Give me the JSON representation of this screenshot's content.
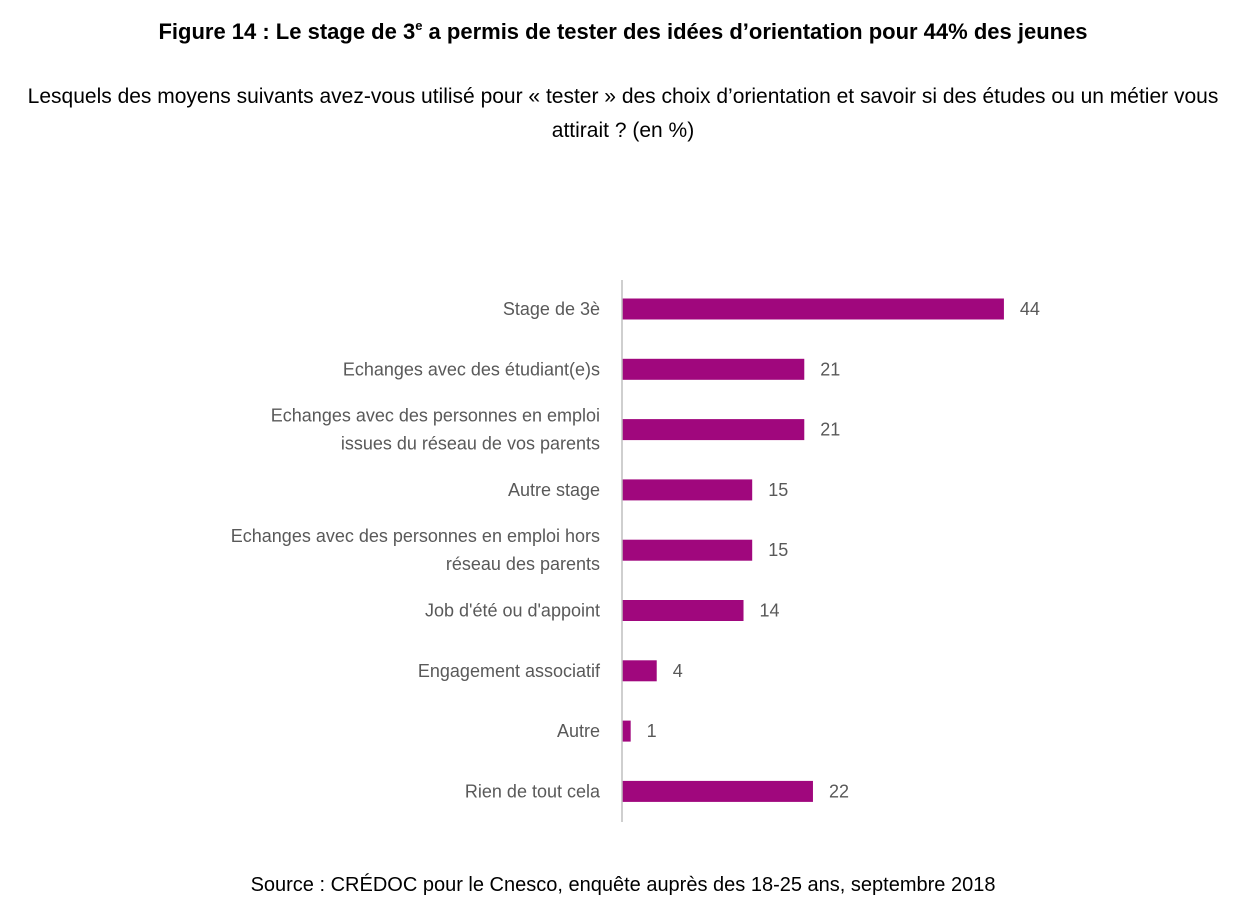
{
  "figure": {
    "title_main": "Figure 14 : Le stage de 3",
    "title_sup": "e",
    "title_rest": " a permis de tester des idées d’orientation pour 44% des jeunes",
    "subtitle": "Lesquels des moyens suivants avez-vous utilisé pour « tester » des choix d’orientation et savoir si des études ou un métier vous attirait ? (en %)",
    "source": "Source : CRÉDOC pour le Cnesco, enquête auprès des 18-25 ans, septembre 2018"
  },
  "chart_data": {
    "type": "bar",
    "orientation": "horizontal",
    "categories": [
      [
        "Stage de 3è"
      ],
      [
        "Echanges avec des étudiant(e)s"
      ],
      [
        "Echanges avec des personnes en emploi",
        "issues du réseau de vos parents"
      ],
      [
        "Autre stage"
      ],
      [
        "Echanges avec des personnes en emploi hors",
        "réseau des parents"
      ],
      [
        "Job d'été ou d'appoint"
      ],
      [
        "Engagement associatif"
      ],
      [
        "Autre"
      ],
      [
        "Rien de tout cela"
      ]
    ],
    "values": [
      44,
      21,
      21,
      15,
      15,
      14,
      4,
      1,
      22
    ],
    "bar_color": "#a0077d",
    "axis_color": "#bfbfbf",
    "label_color": "#595959",
    "data_labels": true,
    "grid": false,
    "legend": "none"
  }
}
